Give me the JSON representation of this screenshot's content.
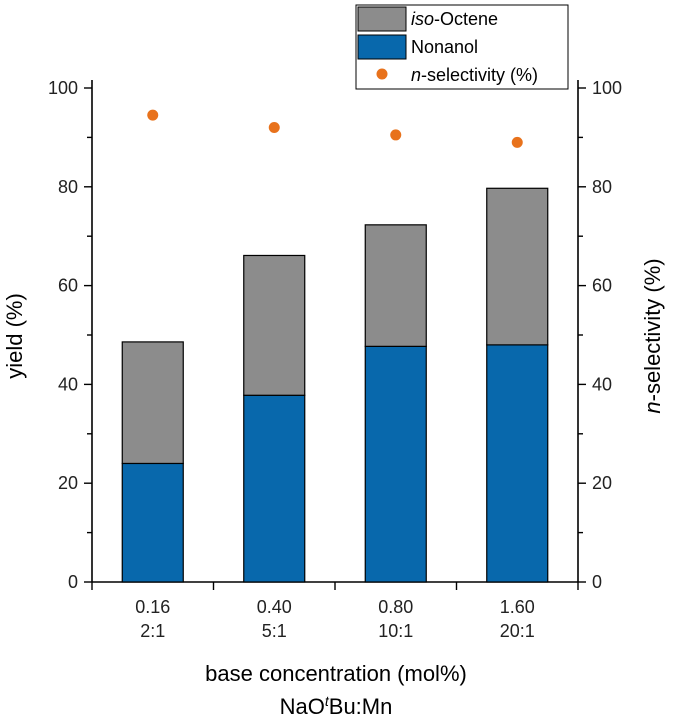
{
  "chart_data": {
    "type": "bar",
    "stacked": true,
    "categories": [
      "0.16",
      "0.40",
      "0.80",
      "1.60"
    ],
    "category_sublabels": [
      "2:1",
      "5:1",
      "10:1",
      "20:1"
    ],
    "series": [
      {
        "name": "Nonanol",
        "color": "#0868AC",
        "values": [
          24.0,
          37.8,
          47.7,
          48.0
        ]
      },
      {
        "name": "iso-Octene",
        "color": "#8C8C8C",
        "values": [
          24.6,
          28.3,
          24.6,
          31.7
        ]
      }
    ],
    "secondary_series": {
      "name": "n-selectivity (%)",
      "name_prefix_italic": "n",
      "name_suffix": "-selectivity (%)",
      "type": "scatter",
      "color": "#E8721C",
      "values": [
        94.5,
        92.0,
        90.5,
        89.0
      ]
    },
    "legend": {
      "position": "top-right",
      "entries": [
        {
          "italic": "iso",
          "rest": "-Octene"
        },
        {
          "italic": "",
          "rest": "Nonanol"
        },
        {
          "italic": "n",
          "rest": "-selectivity (%)"
        }
      ]
    },
    "xlabel_line1": "base concentration (mol%)",
    "xlabel_line2": {
      "pre": "NaO",
      "sup": "t",
      "post": "Bu:Mn"
    },
    "ylabel": "yield (%)",
    "y2label": {
      "italic": "n",
      "rest": "-selectivity (%)",
      "color": "#E8721C"
    },
    "ylim": [
      0,
      100
    ],
    "y2lim": [
      0,
      100
    ],
    "yticks": [
      0,
      20,
      40,
      60,
      80,
      100
    ],
    "grid": false
  }
}
